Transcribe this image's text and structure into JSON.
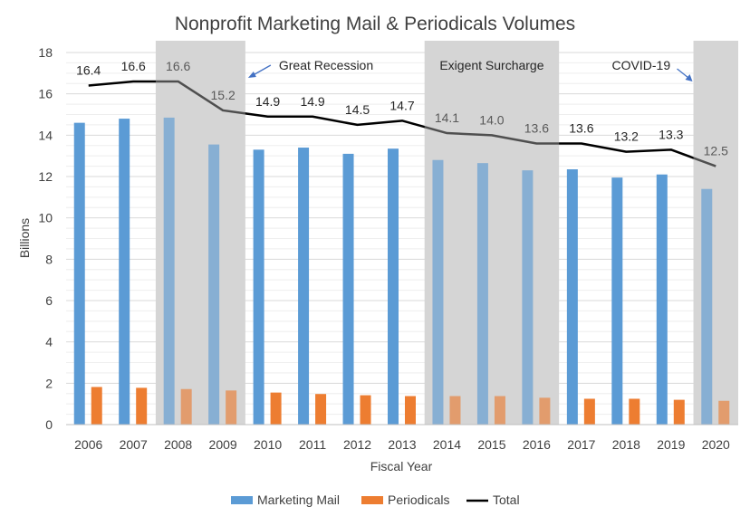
{
  "chart_data": {
    "type": "bar",
    "title": "Nonprofit Marketing Mail  & Periodicals Volumes",
    "xlabel": "Fiscal Year",
    "ylabel": "Billions",
    "ylim": [
      0,
      18
    ],
    "yticks": [
      0,
      2,
      4,
      6,
      8,
      10,
      12,
      14,
      16,
      18
    ],
    "grid": true,
    "legend_position": "bottom",
    "categories": [
      "2006",
      "2007",
      "2008",
      "2009",
      "2010",
      "2011",
      "2012",
      "2013",
      "2014",
      "2015",
      "2016",
      "2017",
      "2018",
      "2019",
      "2020"
    ],
    "series": [
      {
        "name": "Marketing Mail",
        "type": "bar",
        "color": "#5b9bd5",
        "values": [
          14.6,
          14.8,
          14.85,
          13.55,
          13.3,
          13.4,
          13.1,
          13.35,
          12.8,
          12.65,
          12.3,
          12.35,
          11.95,
          12.1,
          11.4
        ]
      },
      {
        "name": "Periodicals",
        "type": "bar",
        "color": "#ed7d31",
        "values": [
          1.82,
          1.78,
          1.72,
          1.65,
          1.55,
          1.48,
          1.42,
          1.38,
          1.38,
          1.38,
          1.3,
          1.25,
          1.25,
          1.2,
          1.15
        ]
      },
      {
        "name": "Total",
        "type": "line",
        "color": "#000000",
        "values": [
          16.4,
          16.6,
          16.6,
          15.2,
          14.9,
          14.9,
          14.5,
          14.7,
          14.1,
          14.0,
          13.6,
          13.6,
          13.2,
          13.3,
          12.5
        ],
        "labels": [
          "16.4",
          "16.6",
          "16.6",
          "15.2",
          "14.9",
          "14.9",
          "14.5",
          "14.7",
          "14.1",
          "14.0",
          "13.6",
          "13.6",
          "13.2",
          "13.3",
          "12.5"
        ]
      }
    ],
    "shaded_periods": [
      {
        "label": "Great Recession",
        "start": "2008",
        "end": "2009"
      },
      {
        "label": "Exigent Surcharge",
        "start": "2014",
        "end": "2016"
      },
      {
        "label": "COVID-19",
        "start": "2020",
        "end": "2020"
      }
    ]
  }
}
